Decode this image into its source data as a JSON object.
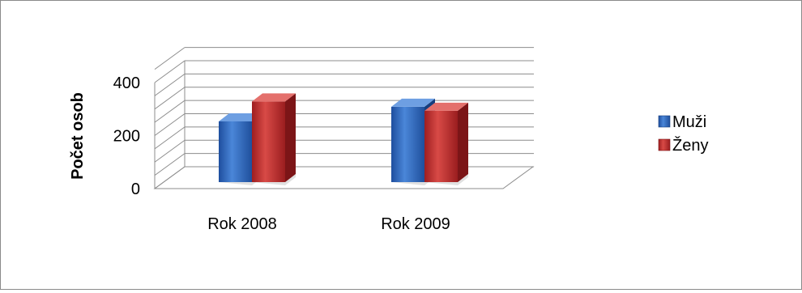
{
  "chart_data": {
    "type": "bar",
    "categories": [
      "Rok 2008",
      "Rok 2009"
    ],
    "series": [
      {
        "name": "Muži",
        "values": [
          275,
          330
        ],
        "color": "#2E64C2"
      },
      {
        "name": "Ženy",
        "values": [
          350,
          315
        ],
        "color": "#C0282B"
      }
    ],
    "title": "",
    "xlabel": "",
    "ylabel": "Počet osob",
    "yticks": [
      "0",
      "200",
      "400"
    ],
    "ylim": [
      0,
      400
    ],
    "grid": true,
    "legend_position": "right",
    "style": "3d-column"
  }
}
